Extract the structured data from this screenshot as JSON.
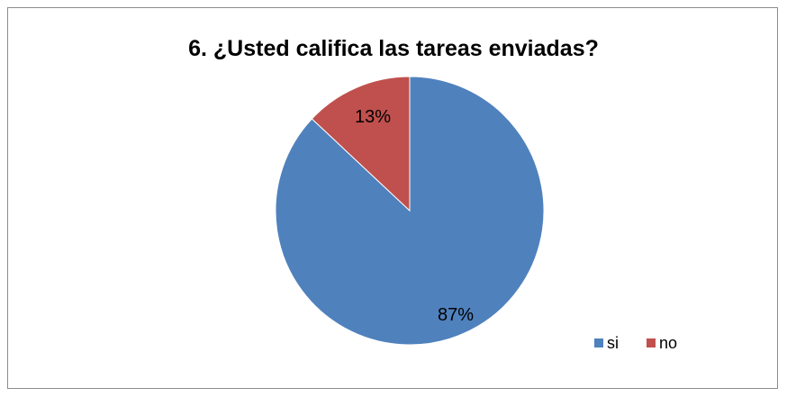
{
  "chart_data": {
    "type": "pie",
    "title": "6. ¿Usted califica las tareas enviadas?",
    "categories": [
      "si",
      "no"
    ],
    "values": [
      87,
      13
    ],
    "data_labels": [
      "87%",
      "13%"
    ],
    "colors": [
      "#4f81bd",
      "#c0504d"
    ],
    "legend_position": "bottom-right"
  }
}
